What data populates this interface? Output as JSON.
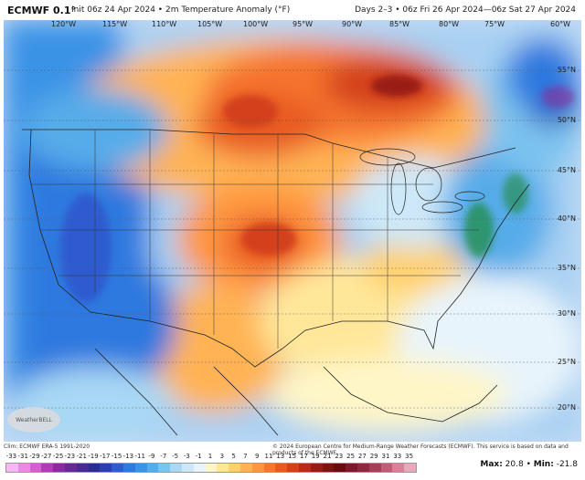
{
  "header": {
    "model": "ECMWF 0.1°",
    "init": "Init 06z 24 Apr 2024 • 2m Temperature Anomaly (°F)",
    "period": "Days 2–3 • 06z Fri 26 Apr 2024—06z Sat 27 Apr 2024"
  },
  "longitudes": [
    "120°W",
    "115°W",
    "110°W",
    "105°W",
    "100°W",
    "95°W",
    "90°W",
    "85°W",
    "80°W",
    "75°W",
    "60°W"
  ],
  "latitudes": [
    "55°N",
    "50°N",
    "45°N",
    "40°N",
    "35°N",
    "30°N",
    "25°N",
    "20°N"
  ],
  "footer": {
    "clim": "Clim: ECMWF ERA-5 1991-2020",
    "copyright": "© 2024 European Centre for Medium-Range Weather Forecasts (ECMWF). This service is based on data and products of the ECMWF."
  },
  "logo_text": "WeatherBELL",
  "scale": {
    "ticks": [
      "-33",
      "-31",
      "-29",
      "-27",
      "-25",
      "-23",
      "-21",
      "-19",
      "-17",
      "-15",
      "-13",
      "-11",
      "-9",
      "-7",
      "-5",
      "-3",
      "-1",
      "1",
      "3",
      "5",
      "7",
      "9",
      "11",
      "13",
      "15",
      "17",
      "19",
      "21",
      "23",
      "25",
      "27",
      "29",
      "31",
      "33",
      "35"
    ],
    "colors": [
      "#f7b6f5",
      "#e98be6",
      "#d35fd1",
      "#ae3fb0",
      "#8a2c99",
      "#6a2a8c",
      "#4a2a8a",
      "#2b2c8f",
      "#2b3fae",
      "#2d5bd0",
      "#2f79df",
      "#3b93e6",
      "#56ace9",
      "#7cc3ef",
      "#a8d8f4",
      "#cde8f8",
      "#e8f4fb",
      "#fff6c8",
      "#ffe79a",
      "#ffd06e",
      "#ffb354",
      "#ff9640",
      "#f6752f",
      "#e85a22",
      "#d3401c",
      "#b92b17",
      "#9a1d13",
      "#7c1410",
      "#650e10",
      "#7a1a2a",
      "#8d2a3e",
      "#a44158",
      "#bd5f77",
      "#d48399",
      "#e8a9ba"
    ]
  },
  "stats": {
    "max_label": "Max:",
    "max_value": "20.8",
    "min_label": "Min:",
    "min_value": "-21.8"
  }
}
